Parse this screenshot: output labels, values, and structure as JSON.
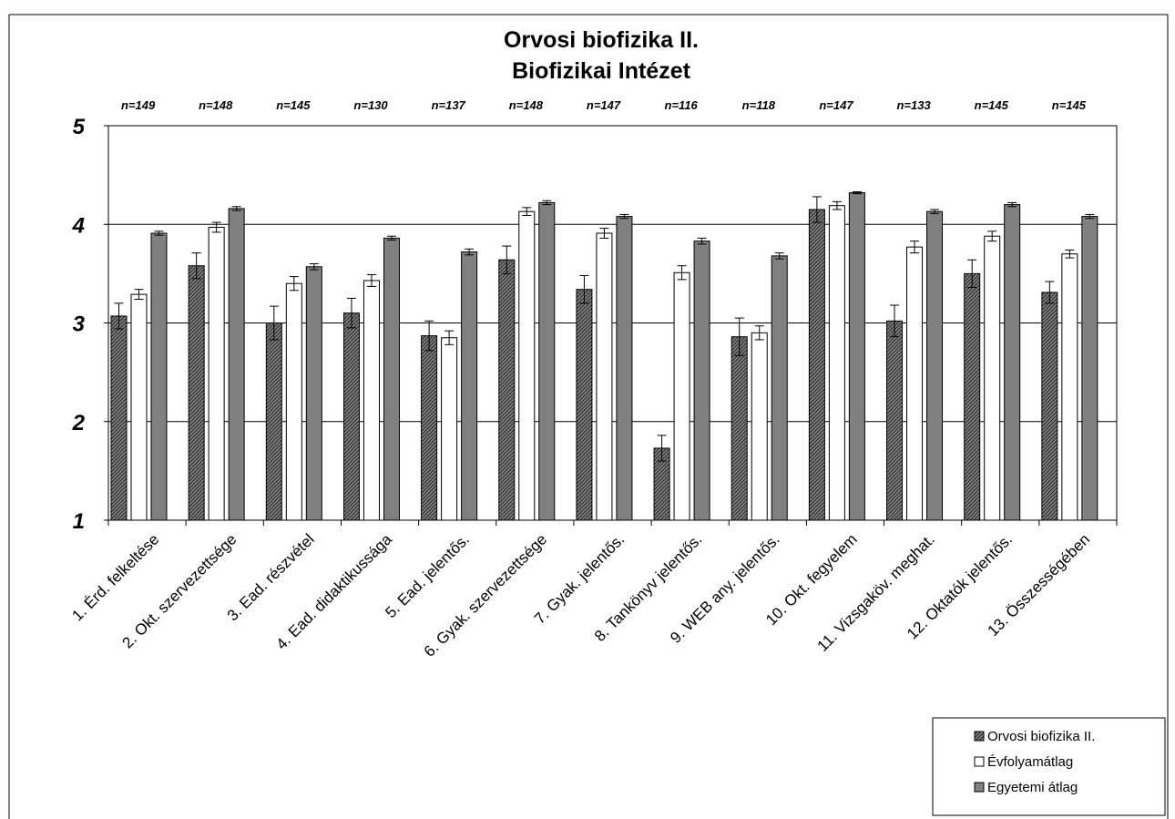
{
  "chart_data": {
    "type": "bar",
    "title": [
      "Orvosi biofizika II.",
      "Biofizikai Intézet"
    ],
    "xlabel": "",
    "ylabel": "",
    "ylim": [
      1,
      5
    ],
    "yticks": [
      "1",
      "2",
      "3",
      "4",
      "5"
    ],
    "grid": true,
    "legend_position": "bottom-right",
    "categories": [
      "1. Érd. felkeltése",
      "2. Okt. szervezettsége",
      "3. Ead. részvétel",
      "4. Ead. didaktikussága",
      "5. Ead. jelentős.",
      "6. Gyak. szervezettsége",
      "7. Gyak. jelentős.",
      "8. Tankönyv jelentős.",
      "9. WEB any. jelentős.",
      "10. Okt. fegyelem",
      "11. Vizsgaköv. meghat.",
      "12. Oktatók jelentős.",
      "13. Összességében"
    ],
    "n_labels": [
      "n=149",
      "n=148",
      "n=145",
      "n=130",
      "n=137",
      "n=148",
      "n=147",
      "n=116",
      "n=118",
      "n=147",
      "n=133",
      "n=145",
      "n=145"
    ],
    "series": [
      {
        "name": "Orvosi biofizika II.",
        "color": "#595959",
        "pattern": "hatched",
        "values": [
          3.07,
          3.58,
          3.0,
          3.1,
          2.87,
          3.64,
          3.34,
          1.73,
          2.86,
          4.15,
          3.02,
          3.5,
          3.31
        ],
        "errors": [
          0.13,
          0.13,
          0.17,
          0.15,
          0.15,
          0.14,
          0.14,
          0.13,
          0.19,
          0.13,
          0.16,
          0.14,
          0.11
        ]
      },
      {
        "name": "Évfolyamátlag",
        "color": "#ffffff",
        "pattern": "solid",
        "values": [
          3.29,
          3.97,
          3.4,
          3.43,
          2.85,
          4.13,
          3.91,
          3.51,
          2.9,
          4.19,
          3.77,
          3.88,
          3.7
        ],
        "errors": [
          0.05,
          0.05,
          0.07,
          0.06,
          0.07,
          0.04,
          0.05,
          0.07,
          0.07,
          0.04,
          0.06,
          0.05,
          0.04
        ]
      },
      {
        "name": "Egyetemi átlag",
        "color": "#808080",
        "pattern": "solid",
        "values": [
          3.91,
          4.16,
          3.57,
          3.86,
          3.72,
          4.22,
          4.08,
          3.83,
          3.68,
          4.32,
          4.13,
          4.2,
          4.08
        ],
        "errors": [
          0.02,
          0.02,
          0.03,
          0.02,
          0.03,
          0.02,
          0.02,
          0.03,
          0.03,
          0.01,
          0.02,
          0.02,
          0.02
        ]
      }
    ]
  }
}
